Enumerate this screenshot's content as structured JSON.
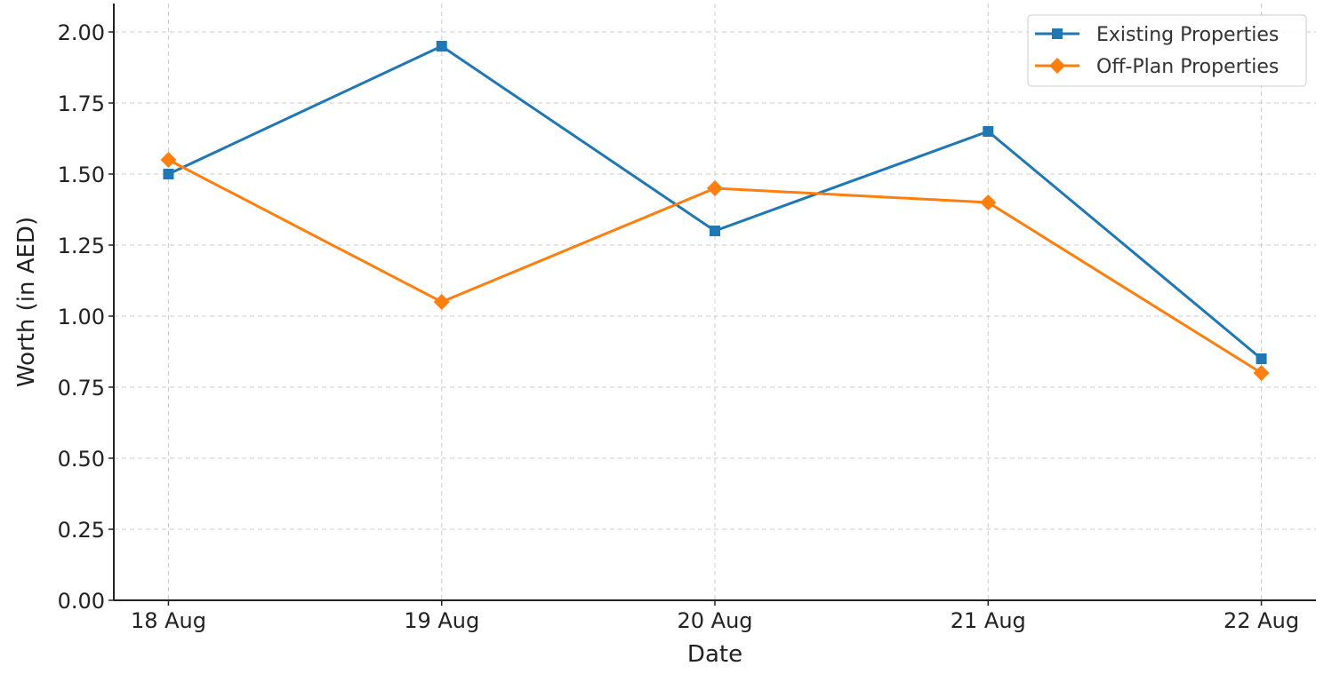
{
  "chart_data": {
    "type": "line",
    "title": "",
    "xlabel": "Date",
    "ylabel": "Worth (in AED)",
    "categories": [
      "18 Aug",
      "19 Aug",
      "20 Aug",
      "21 Aug",
      "22 Aug"
    ],
    "series": [
      {
        "name": "Existing Properties",
        "values": [
          1.5,
          1.95,
          1.3,
          1.65,
          0.85
        ],
        "color": "#1f77b4",
        "marker": "square"
      },
      {
        "name": "Off-Plan Properties",
        "values": [
          1.55,
          1.05,
          1.45,
          1.4,
          0.8
        ],
        "color": "#ff7f0e",
        "marker": "diamond"
      }
    ],
    "ylim": [
      0,
      2.1
    ],
    "yticks": [
      "0.00",
      "0.25",
      "0.50",
      "0.75",
      "1.00",
      "1.25",
      "1.50",
      "1.75",
      "2.00"
    ],
    "grid": true,
    "legend": "top-right"
  }
}
